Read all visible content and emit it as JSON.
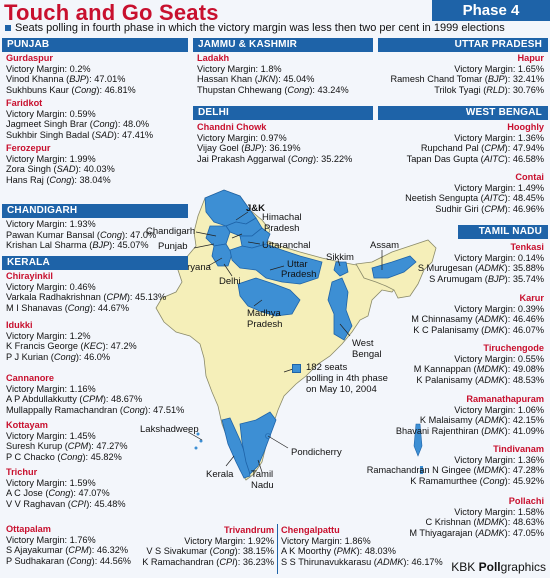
{
  "title": "Touch and Go Seats",
  "phase": "Phase 4",
  "subtitle": "Seats polling in fourth phase in which the victory margin was less then two per cent in 1999 elections",
  "credit_prefix": "KBK ",
  "credit_bold": "Poll",
  "credit_suffix": "graphics",
  "legend": {
    "line1": "182 seats",
    "line2": "polling in 4th phase",
    "line3": "on May 10, 2004",
    "color": "#3d8fd4"
  },
  "colors": {
    "accent_red": "#c8102e",
    "brand_blue": "#1e63a8",
    "land": "#f5efb9",
    "highlight": "#3d8fd4"
  },
  "map_labels": {
    "jk": "J&K",
    "himachal1": "Himachal",
    "himachal2": "Pradesh",
    "chandigarh": "Chandigarh",
    "punjab": "Punjab",
    "uttaranchal": "Uttaranchal",
    "haryana": "Haryana",
    "delhi": "Delhi",
    "up1": "Uttar",
    "up2": "Pradesh",
    "sikkim": "Sikkim",
    "assam": "Assam",
    "mp1": "Madhya",
    "mp2": "Pradesh",
    "wb1": "West",
    "wb2": "Bengal",
    "lakshadweep": "Lakshadweep",
    "pondicherry": "Pondicherry",
    "kerala": "Kerala",
    "tn1": "Tamil",
    "tn2": "Nadu"
  },
  "punjab": {
    "header": "PUNJAB",
    "seats": [
      {
        "name": "Gurdaspur",
        "margin": "Victory Margin: 0.2%",
        "c1": "Vinod Khanna (BJP): 47.01%",
        "c2": "Sukhbuns Kaur (Cong): 46.81%"
      },
      {
        "name": "Faridkot",
        "margin": "Victory Margin: 0.59%",
        "c1": "Jagmeet Singh Brar (Cong): 48.0%",
        "c2": "Sukhbir Singh Badal (SAD): 47.41%"
      },
      {
        "name": "Ferozepur",
        "margin": "Victory Margin: 1.99%",
        "c1": "Zora Singh (SAD): 40.03%",
        "c2": "Hans Raj (Cong): 38.04%"
      }
    ]
  },
  "chandigarh": {
    "header": "CHANDIGARH",
    "margin": "Victory Margin: 1.93%",
    "c1": "Pawan Kumar Bansal (Cong): 47.0%",
    "c2": "Krishan Lal Sharma (BJP): 45.07%"
  },
  "kerala": {
    "header": "KERALA",
    "seats": [
      {
        "name": "Chirayinkil",
        "margin": "Victory Margin: 0.46%",
        "c1": "Varkala Radhakrishnan (CPM): 45.13%",
        "c2": "M I Shanavas (Cong): 44.67%"
      },
      {
        "name": "Idukki",
        "margin": "Victory Margin: 1.2%",
        "c1": "K Francis George (KEC): 47.2%",
        "c2": "P J Kurian (Cong): 46.0%"
      },
      {
        "name": "Cannanore",
        "margin": "Victory Margin: 1.16%",
        "c1": "A P Abdullakkutty (CPM): 48.67%",
        "c2": "Mullappally Ramachandran (Cong): 47.51%"
      },
      {
        "name": "Kottayam",
        "margin": "Victory Margin: 1.45%",
        "c1": "Suresh Kurup (CPM): 47.27%",
        "c2": "P C Chacko (Cong): 45.82%"
      },
      {
        "name": "Trichur",
        "margin": "Victory Margin: 1.59%",
        "c1": "A C Jose (Cong): 47.07%",
        "c2": "V V Raghavan (CPI): 45.48%"
      },
      {
        "name": "Ottapalam",
        "margin": "Victory Margin: 1.76%",
        "c1": "S Ajayakumar (CPM): 46.32%",
        "c2": "P Sudhakaran (Cong): 44.56%"
      }
    ]
  },
  "jk": {
    "header": "JAMMU & KASHMIR",
    "name": "Ladakh",
    "margin": "Victory Margin: 1.8%",
    "c1": "Hassan Khan (JKN): 45.04%",
    "c2": "Thupstan Chhewang (Cong): 43.24%"
  },
  "delhi": {
    "header": "DELHI",
    "name": "Chandni Chowk",
    "margin": "Victory Margin: 0.97%",
    "c1": "Vijay Goel (BJP): 36.19%",
    "c2": "Jai Prakash Aggarwal (Cong): 35.22%"
  },
  "up": {
    "header": "UTTAR PRADESH",
    "name": "Hapur",
    "margin": "Victory Margin: 1.65%",
    "c1": "Ramesh Chand Tomar (BJP): 32.41%",
    "c2": "Trilok Tyagi (RLD): 30.76%"
  },
  "wb": {
    "header": "WEST BENGAL",
    "seats": [
      {
        "name": "Hooghly",
        "margin": "Victory Margin: 1.36%",
        "c1": "Rupchand Pal (CPM): 47.94%",
        "c2": "Tapan Das Gupta (AITC): 46.58%"
      },
      {
        "name": "Contai",
        "margin": "Victory Margin: 1.49%",
        "c1": "Neetish Sengupta (AITC): 48.45%",
        "c2": "Sudhir Giri (CPM): 46.96%"
      }
    ]
  },
  "tn": {
    "header": "TAMIL NADU",
    "seats": [
      {
        "name": "Tenkasi",
        "margin": "Victory Margin: 0.14%",
        "c1": "S Murugesan (ADMK): 35.88%",
        "c2": "S Arumugam (BJP): 35.74%"
      },
      {
        "name": "Karur",
        "margin": "Victory Margin: 0.39%",
        "c1": "M Chinnasamy (ADMK): 46.46%",
        "c2": "K C Palanisamy (DMK): 46.07%"
      },
      {
        "name": "Tiruchengode",
        "margin": "Victory Margin: 0.55%",
        "c1": "M Kannappan (MDMK): 49.08%",
        "c2": "K Palanisamy (ADMK): 48.53%"
      },
      {
        "name": "Ramanathapuram",
        "margin": "Victory Margin: 1.06%",
        "c1": "K Malaisamy (ADMK): 42.15%",
        "c2": "Bhavani Rajenthiran (DMK): 41.09%"
      },
      {
        "name": "Tindivanam",
        "margin": "Victory Margin: 1.36%",
        "c1": "Ramachandran N Gingee (MDMK): 47.28%",
        "c2": "K Ramamurthee (Cong): 45.92%"
      },
      {
        "name": "Pollachi",
        "margin": "Victory Margin: 1.58%",
        "c1": "C Krishnan (MDMK): 48.63%",
        "c2": "M Thiyagarajan (ADMK): 47.05%"
      }
    ]
  },
  "bottom": {
    "trivandrum": {
      "name": "Trivandrum",
      "margin": "Victory Margin: 1.92%",
      "c1": "V S Sivakumar (Cong): 38.15%",
      "c2": "K Ramachandran (CPI): 36.23%"
    },
    "chengalpattu": {
      "name": "Chengalpattu",
      "margin": "Victory Margin: 1.86%",
      "c1": "A K Moorthy (PMK): 48.03%",
      "c2": "S S Thirunavukkarasu (ADMK): 46.17%"
    }
  }
}
